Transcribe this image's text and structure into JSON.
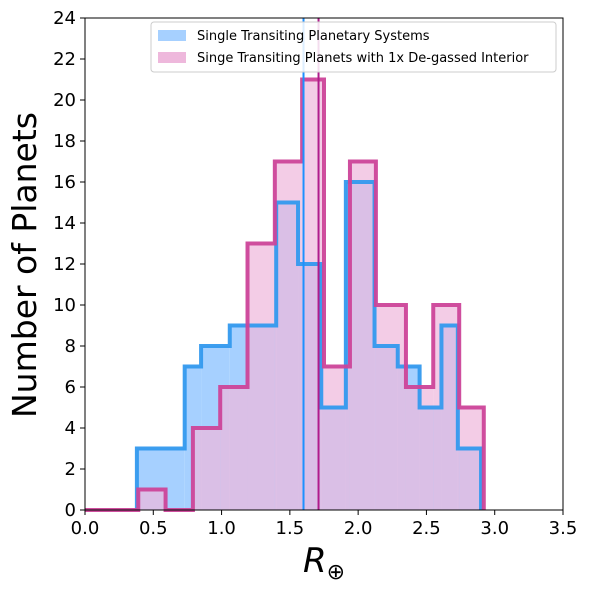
{
  "chart_data": {
    "type": "histogram",
    "xlabel_main": "R",
    "xlabel_sub": "⊕",
    "ylabel": "Number of Planets",
    "xlim": [
      0,
      3.5
    ],
    "ylim": [
      0,
      24
    ],
    "xticks": [
      0.0,
      0.5,
      1.0,
      1.5,
      2.0,
      2.5,
      3.0,
      3.5
    ],
    "xtick_labels": [
      "0.0",
      "0.5",
      "1.0",
      "1.5",
      "2.0",
      "2.5",
      "3.0",
      "3.5"
    ],
    "yticks": [
      0,
      2,
      4,
      6,
      8,
      10,
      12,
      14,
      16,
      18,
      20,
      22,
      24
    ],
    "ytick_labels": [
      "0",
      "2",
      "4",
      "6",
      "8",
      "10",
      "12",
      "14",
      "16",
      "18",
      "20",
      "22",
      "24"
    ],
    "legend_position": "top-right",
    "series": [
      {
        "name": "Single Transiting Planetary Systems",
        "fill_color": "#a6d0ff",
        "edge_color": "#3399ee",
        "bin_edges": [
          0.38,
          0.73,
          0.85,
          1.06,
          1.4,
          1.56,
          1.73,
          1.91,
          2.12,
          2.29,
          2.45,
          2.61,
          2.73,
          2.9
        ],
        "counts": [
          3,
          7,
          8,
          9,
          15,
          12,
          5,
          16,
          8,
          7,
          5,
          9,
          3
        ],
        "mean": 1.6,
        "mean_color": "#1e90ff"
      },
      {
        "name": "Singe Transiting Planets with 1x De-gassed Interior",
        "fill_color": "#eeb8dc",
        "edge_color": "#cc4499",
        "bin_edges": [
          0.0,
          0.39,
          0.59,
          0.79,
          0.99,
          1.19,
          1.39,
          1.59,
          1.75,
          1.94,
          2.13,
          2.35,
          2.55,
          2.74,
          2.92
        ],
        "counts": [
          0,
          1,
          0,
          4,
          6,
          13,
          17,
          21,
          7,
          17,
          10,
          6,
          10,
          5
        ],
        "mean": 1.71,
        "mean_color": "#b01c8c"
      }
    ]
  }
}
